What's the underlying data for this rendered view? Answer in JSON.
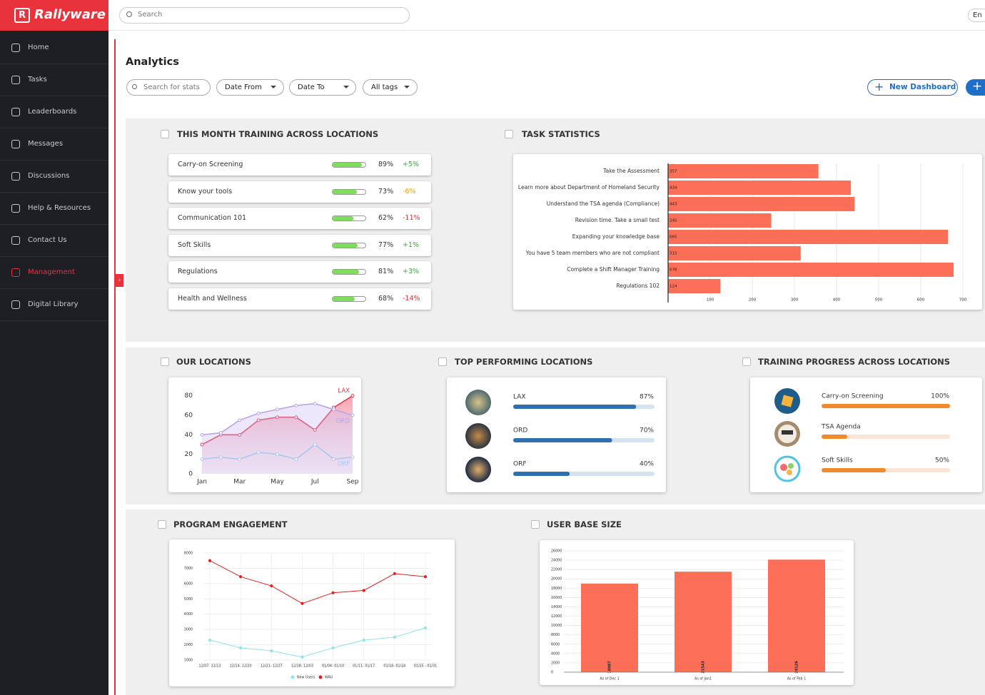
{
  "brand": "Rallyware",
  "search_placeholder": "Search",
  "language": "En",
  "nav": [
    {
      "label": "Home",
      "active": false
    },
    {
      "label": "Tasks",
      "active": false
    },
    {
      "label": "Leaderboards",
      "active": false
    },
    {
      "label": "Messages",
      "active": false
    },
    {
      "label": "Discussions",
      "active": false
    },
    {
      "label": "Help & Resources",
      "active": false
    },
    {
      "label": "Contact Us",
      "active": false
    },
    {
      "label": "Management",
      "active": true
    },
    {
      "label": "Digital Library",
      "active": false
    }
  ],
  "page_title": "Analytics",
  "filters": {
    "search": "Search for stats",
    "date_from": "Date From",
    "date_to": "Date To",
    "tags": "All tags"
  },
  "new_dashboard": "New Dashboard",
  "training": {
    "title": "THIS MONTH TRAINING ACROSS LOCATIONS",
    "rows": [
      {
        "name": "Carry-on Screening",
        "value": 89,
        "value_label": "89%",
        "change": "+5%",
        "change_color": "#3aa63a"
      },
      {
        "name": "Know your tools",
        "value": 73,
        "value_label": "73%",
        "change": "-6%",
        "change_color": "#f0a020"
      },
      {
        "name": "Communication 101",
        "value": 62,
        "value_label": "62%",
        "change": "-11%",
        "change_color": "#e8323c"
      },
      {
        "name": "Soft Skills",
        "value": 77,
        "value_label": "77%",
        "change": "+1%",
        "change_color": "#3aa63a"
      },
      {
        "name": "Regulations",
        "value": 81,
        "value_label": "81%",
        "change": "+3%",
        "change_color": "#3aa63a"
      },
      {
        "name": "Health and Wellness",
        "value": 68,
        "value_label": "68%",
        "change": "-14%",
        "change_color": "#e8323c"
      }
    ]
  },
  "task_statistics": {
    "type": "bar",
    "title": "TASK STATISTICS",
    "categories": [
      "Take the Assessment",
      "Learn more about Department of Homeland Security",
      "Understand the TSA agenda (Compliance)",
      "Revision time. Take a small test",
      "Expanding your knowledge base",
      "You have 5 team members who are not compliant",
      "Complete a Shift Manager Training",
      "Regulations 102"
    ],
    "values": [
      357,
      434,
      443,
      245,
      665,
      315,
      678,
      124
    ],
    "color": "#fb6e58",
    "xlim": [
      0,
      700
    ],
    "xticks": [
      100,
      200,
      300,
      400,
      500,
      600,
      700
    ]
  },
  "our_locations": {
    "type": "line",
    "title": "OUR LOCATIONS",
    "categories": [
      "Jan",
      null,
      "Mar",
      null,
      "May",
      null,
      "Jul",
      null,
      "Sep"
    ],
    "series": [
      {
        "name": "LAX",
        "color": "#e8374a",
        "values": [
          30,
          40,
          40,
          55,
          58,
          58,
          45,
          68,
          80
        ]
      },
      {
        "name": "ORD",
        "color": "#b9a6e8",
        "values": [
          40,
          42,
          55,
          62,
          66,
          70,
          72,
          66,
          60
        ]
      },
      {
        "name": "ORF",
        "color": "#a9c8ee",
        "values": [
          15,
          17,
          15,
          22,
          20,
          15,
          30,
          15,
          17
        ]
      }
    ],
    "ylim": [
      0,
      90
    ],
    "yticks": [
      0,
      20,
      40,
      60,
      80
    ]
  },
  "top_locations": {
    "title": "TOP PERFORMING LOCATIONS",
    "items": [
      {
        "name": "LAX",
        "value": 87,
        "value_label": "87%"
      },
      {
        "name": "ORD",
        "value": 70,
        "value_label": "70%"
      },
      {
        "name": "ORF",
        "value": 40,
        "value_label": "40%"
      }
    ]
  },
  "training_progress": {
    "title": "TRAINING PROGRESS ACROSS LOCATIONS",
    "items": [
      {
        "name": "Carry-on Screening",
        "value": 100,
        "value_label": "100%"
      },
      {
        "name": "TSA Agenda",
        "value": 20,
        "value_label": null
      },
      {
        "name": "Soft Skills",
        "value": 50,
        "value_label": "50%"
      }
    ]
  },
  "program_engagement": {
    "type": "line",
    "title": "PROGRAM ENGAGEMENT",
    "categories": [
      "12/07- 12/13",
      "12/14- 12/20",
      "12/21- 12/27",
      "12/28- 12/03",
      "01/04- 01/10",
      "01/11- 01/17",
      "01/18- 01/24",
      "01/25 - 01/31"
    ],
    "series": [
      {
        "name": "New Users",
        "color": "#8fe3ea",
        "values": [
          2300,
          1800,
          1600,
          1200,
          1800,
          2300,
          2500,
          3100
        ]
      },
      {
        "name": "WAU",
        "color": "#e02020",
        "values": [
          7500,
          6450,
          5850,
          4700,
          5400,
          5550,
          6650,
          6450
        ]
      }
    ],
    "ylim": [
      1000,
      8000
    ],
    "yticks": [
      1000,
      2000,
      3000,
      4000,
      5000,
      6000,
      7000,
      8000
    ]
  },
  "user_base": {
    "type": "bar",
    "title": "USER BASE SIZE",
    "categories": [
      "As of Dec 1",
      "As of Jan1",
      "As of Feb 1"
    ],
    "values": [
      18987,
      21543,
      24126
    ],
    "color": "#fb6e58",
    "ylim": [
      0,
      26000
    ],
    "yticks": [
      0,
      2000,
      4000,
      6000,
      8000,
      10000,
      12000,
      14000,
      16000,
      18000,
      20000,
      22000,
      24000,
      26000
    ]
  }
}
